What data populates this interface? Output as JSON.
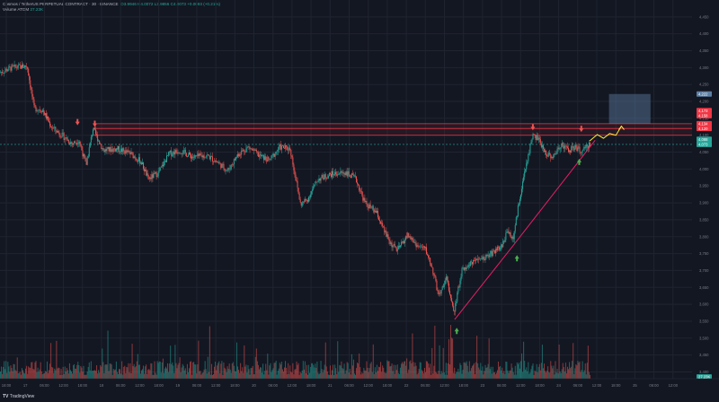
{
  "header": {
    "instrument": "Cosmos / TetherUS PERPETUAL CONTRACT · 30 · BINANCE",
    "ohlc": "O3.9946 H4.0072 L3.9856 C4.0073 +0.0083 (+0.21%)",
    "indicator_name": "Volume",
    "indicator_symbol": "ATOM",
    "indicator_value": "27.23K"
  },
  "branding": {
    "mark": "TV",
    "name": "TradingView"
  },
  "colors": {
    "background": "#131722",
    "bull": "#26a69a",
    "bear": "#ef5350",
    "resistance": "#f23645",
    "trendline": "#e91e63",
    "projection": "#ffeb3b",
    "target_box": "#5d7fa3",
    "arrow_up": "#4caf50",
    "arrow_down": "#ef5350"
  },
  "icons": {
    "arrow_up": "arrow-up-icon",
    "arrow_down": "arrow-down-icon"
  },
  "chart_data": {
    "type": "candlestick",
    "symbol": "ATOMUSDT.P",
    "timeframe": "30",
    "y_axis": {
      "range": [
        3.38,
        4.5
      ],
      "ticks": [
        "4,450",
        "4,400",
        "4,350",
        "4,300",
        "4,250",
        "4,200",
        "4,150",
        "4,100",
        "4,050",
        "4,000",
        "3,950",
        "3,900",
        "3,850",
        "3,800",
        "3,750",
        "3,700",
        "3,650",
        "3,600",
        "3,550",
        "3,500",
        "3,450",
        "3,400"
      ],
      "price_labels": [
        {
          "text": "4,222",
          "kind": "target"
        },
        {
          "text": "4,173",
          "kind": "resistance"
        },
        {
          "text": "4,158",
          "kind": "resistance"
        },
        {
          "text": "4,134",
          "kind": "resistance"
        },
        {
          "text": "4,120",
          "kind": "resistance"
        },
        {
          "text": "4,088",
          "kind": "last"
        },
        {
          "text": "4,073",
          "kind": "last"
        },
        {
          "text": "27.23K",
          "kind": "volume"
        }
      ]
    },
    "x_axis": {
      "labels": [
        "18:00",
        "17",
        "06:00",
        "12:00",
        "18:00",
        "18",
        "06:00",
        "12:00",
        "18:00",
        "19",
        "06:00",
        "12:00",
        "18:00",
        "20",
        "06:00",
        "12:00",
        "18:00",
        "21",
        "06:00",
        "12:00",
        "18:00",
        "22",
        "06:00",
        "12:00",
        "18:00",
        "23",
        "06:00",
        "12:00",
        "18:00",
        "24",
        "06:00",
        "12:00",
        "18:00",
        "25",
        "06:00",
        "12:00"
      ]
    },
    "resistance_levels": [
      4.134,
      4.12,
      4.1
    ],
    "last_price": 4.073,
    "target_zone": {
      "from": 4.134,
      "to": 4.222
    },
    "trendline": [
      {
        "x": 0.657,
        "y": 3.555
      },
      {
        "x": 0.742,
        "y": 3.775
      },
      {
        "x": 0.86,
        "y": 4.085
      }
    ],
    "projection_path": [
      {
        "x": 0.852,
        "y": 4.083
      },
      {
        "x": 0.863,
        "y": 4.102
      },
      {
        "x": 0.872,
        "y": 4.091
      },
      {
        "x": 0.881,
        "y": 4.105
      },
      {
        "x": 0.89,
        "y": 4.1
      },
      {
        "x": 0.898,
        "y": 4.127
      }
    ],
    "price_path": [
      {
        "x": 0.0,
        "y": 4.285
      },
      {
        "x": 0.018,
        "y": 4.3
      },
      {
        "x": 0.04,
        "y": 4.305
      },
      {
        "x": 0.05,
        "y": 4.18
      },
      {
        "x": 0.062,
        "y": 4.175
      },
      {
        "x": 0.075,
        "y": 4.125
      },
      {
        "x": 0.09,
        "y": 4.1
      },
      {
        "x": 0.105,
        "y": 4.075
      },
      {
        "x": 0.115,
        "y": 4.085
      },
      {
        "x": 0.125,
        "y": 4.01
      },
      {
        "x": 0.135,
        "y": 4.12
      },
      {
        "x": 0.15,
        "y": 4.055
      },
      {
        "x": 0.17,
        "y": 4.06
      },
      {
        "x": 0.19,
        "y": 4.045
      },
      {
        "x": 0.205,
        "y": 4.02
      },
      {
        "x": 0.215,
        "y": 3.97
      },
      {
        "x": 0.23,
        "y": 3.99
      },
      {
        "x": 0.245,
        "y": 4.045
      },
      {
        "x": 0.26,
        "y": 4.055
      },
      {
        "x": 0.28,
        "y": 4.035
      },
      {
        "x": 0.3,
        "y": 4.04
      },
      {
        "x": 0.315,
        "y": 4.02
      },
      {
        "x": 0.33,
        "y": 3.995
      },
      {
        "x": 0.345,
        "y": 4.045
      },
      {
        "x": 0.36,
        "y": 4.065
      },
      {
        "x": 0.375,
        "y": 4.04
      },
      {
        "x": 0.39,
        "y": 4.025
      },
      {
        "x": 0.405,
        "y": 4.065
      },
      {
        "x": 0.42,
        "y": 4.06
      },
      {
        "x": 0.435,
        "y": 3.895
      },
      {
        "x": 0.445,
        "y": 3.91
      },
      {
        "x": 0.46,
        "y": 3.97
      },
      {
        "x": 0.48,
        "y": 3.985
      },
      {
        "x": 0.5,
        "y": 3.99
      },
      {
        "x": 0.515,
        "y": 3.97
      },
      {
        "x": 0.528,
        "y": 3.9
      },
      {
        "x": 0.545,
        "y": 3.87
      },
      {
        "x": 0.555,
        "y": 3.82
      },
      {
        "x": 0.565,
        "y": 3.78
      },
      {
        "x": 0.575,
        "y": 3.76
      },
      {
        "x": 0.59,
        "y": 3.805
      },
      {
        "x": 0.605,
        "y": 3.77
      },
      {
        "x": 0.615,
        "y": 3.765
      },
      {
        "x": 0.625,
        "y": 3.71
      },
      {
        "x": 0.635,
        "y": 3.62
      },
      {
        "x": 0.645,
        "y": 3.68
      },
      {
        "x": 0.657,
        "y": 3.58
      },
      {
        "x": 0.668,
        "y": 3.7
      },
      {
        "x": 0.68,
        "y": 3.72
      },
      {
        "x": 0.695,
        "y": 3.73
      },
      {
        "x": 0.71,
        "y": 3.75
      },
      {
        "x": 0.725,
        "y": 3.77
      },
      {
        "x": 0.735,
        "y": 3.82
      },
      {
        "x": 0.742,
        "y": 3.79
      },
      {
        "x": 0.752,
        "y": 3.92
      },
      {
        "x": 0.762,
        "y": 4.02
      },
      {
        "x": 0.77,
        "y": 4.1
      },
      {
        "x": 0.778,
        "y": 4.09
      },
      {
        "x": 0.788,
        "y": 4.05
      },
      {
        "x": 0.8,
        "y": 4.035
      },
      {
        "x": 0.812,
        "y": 4.075
      },
      {
        "x": 0.822,
        "y": 4.055
      },
      {
        "x": 0.832,
        "y": 4.065
      },
      {
        "x": 0.842,
        "y": 4.05
      },
      {
        "x": 0.852,
        "y": 4.073
      }
    ],
    "arrows": [
      {
        "dir": "down",
        "x": 0.112,
        "y": 4.14
      },
      {
        "dir": "down",
        "x": 0.137,
        "y": 4.135
      },
      {
        "dir": "down",
        "x": 0.77,
        "y": 4.125
      },
      {
        "dir": "down",
        "x": 0.84,
        "y": 4.12
      },
      {
        "dir": "up",
        "x": 0.66,
        "y": 3.52
      },
      {
        "dir": "up",
        "x": 0.747,
        "y": 3.735
      },
      {
        "dir": "up",
        "x": 0.837,
        "y": 4.02
      }
    ]
  }
}
